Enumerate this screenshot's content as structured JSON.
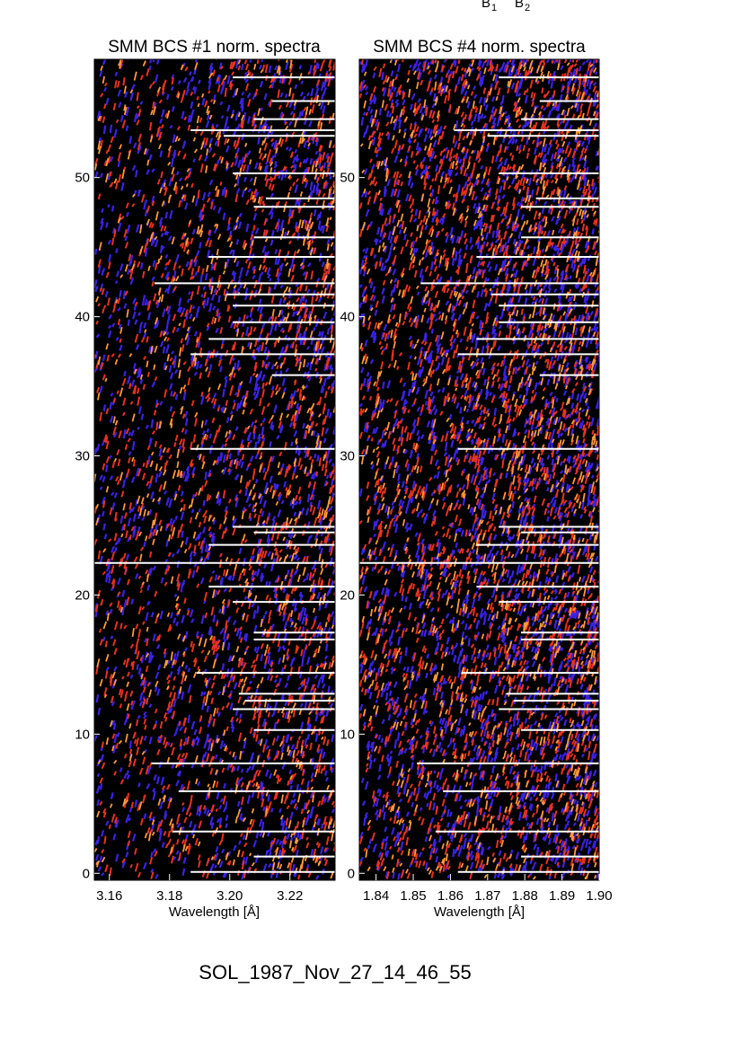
{
  "figure_id": "SOL_1987_Nov_27_14_46_55",
  "header_labels": [
    "B",
    "B"
  ],
  "header_subscripts": [
    "1",
    "2"
  ],
  "colors": {
    "background": "#000000",
    "speckle_blue": "#3b22e6",
    "speckle_red": "#e8321e",
    "speckle_orange": "#ff9a3c",
    "gap_line": "#ffffff"
  },
  "chart_data": [
    {
      "type": "heatmap",
      "title": "SMM BCS #1 norm. spectra",
      "xlabel": "Wavelength [Å]",
      "ylabel": "",
      "xlim": [
        3.155,
        3.235
      ],
      "ylim": [
        -0.5,
        58.5
      ],
      "x_ticks": [
        "3.16",
        "3.18",
        "3.20",
        "3.22"
      ],
      "x_tick_values": [
        3.16,
        3.18,
        3.2,
        3.22
      ],
      "y_ticks": [
        "0",
        "10",
        "20",
        "30",
        "40",
        "50"
      ],
      "y_tick_values": [
        0,
        10,
        20,
        30,
        40,
        50
      ],
      "full_width_gap_rows": [
        22.3
      ],
      "gap_rows": [
        {
          "row": 57.2,
          "x_start": 3.201
        },
        {
          "row": 55.5,
          "x_start": 3.214
        },
        {
          "row": 54.2,
          "x_start": 3.208
        },
        {
          "row": 53.4,
          "x_start": 3.187
        },
        {
          "row": 53.0,
          "x_start": 3.198
        },
        {
          "row": 50.3,
          "x_start": 3.201
        },
        {
          "row": 48.5,
          "x_start": 3.212
        },
        {
          "row": 47.9,
          "x_start": 3.208
        },
        {
          "row": 45.7,
          "x_start": 3.208
        },
        {
          "row": 44.3,
          "x_start": 3.193
        },
        {
          "row": 42.4,
          "x_start": 3.175
        },
        {
          "row": 41.6,
          "x_start": 3.199
        },
        {
          "row": 40.8,
          "x_start": 3.201
        },
        {
          "row": 39.6,
          "x_start": 3.201
        },
        {
          "row": 38.4,
          "x_start": 3.193
        },
        {
          "row": 37.3,
          "x_start": 3.187
        },
        {
          "row": 35.8,
          "x_start": 3.214
        },
        {
          "row": 30.5,
          "x_start": 3.187
        },
        {
          "row": 24.9,
          "x_start": 3.201
        },
        {
          "row": 24.5,
          "x_start": 3.208
        },
        {
          "row": 23.6,
          "x_start": 3.193
        },
        {
          "row": 20.6,
          "x_start": 3.193
        },
        {
          "row": 19.5,
          "x_start": 3.201
        },
        {
          "row": 17.3,
          "x_start": 3.208
        },
        {
          "row": 16.8,
          "x_start": 3.208
        },
        {
          "row": 14.4,
          "x_start": 3.189
        },
        {
          "row": 12.9,
          "x_start": 3.203
        },
        {
          "row": 12.4,
          "x_start": 3.205
        },
        {
          "row": 11.8,
          "x_start": 3.201
        },
        {
          "row": 10.3,
          "x_start": 3.208
        },
        {
          "row": 7.9,
          "x_start": 3.174
        },
        {
          "row": 5.9,
          "x_start": 3.183
        },
        {
          "row": 3.0,
          "x_start": 3.181
        },
        {
          "row": 1.2,
          "x_start": 3.208
        },
        {
          "row": 0.1,
          "x_start": 3.187
        }
      ]
    },
    {
      "type": "heatmap",
      "title": "SMM BCS #4 norm. spectra",
      "xlabel": "Wavelength [Å]",
      "ylabel": "",
      "xlim": [
        1.8355,
        1.9
      ],
      "ylim": [
        -0.5,
        58.5
      ],
      "x_ticks": [
        "1.84",
        "1.85",
        "1.86",
        "1.87",
        "1.88",
        "1.89",
        "1.90"
      ],
      "x_tick_values": [
        1.84,
        1.85,
        1.86,
        1.87,
        1.88,
        1.89,
        1.9
      ],
      "y_ticks": [
        "0",
        "10",
        "20",
        "30",
        "40",
        "50"
      ],
      "y_tick_values": [
        0,
        10,
        20,
        30,
        40,
        50
      ],
      "full_width_gap_rows": [
        22.3
      ],
      "gap_rows": [
        {
          "row": 57.2,
          "x_start": 1.873
        },
        {
          "row": 55.5,
          "x_start": 1.884
        },
        {
          "row": 54.2,
          "x_start": 1.879
        },
        {
          "row": 53.4,
          "x_start": 1.861
        },
        {
          "row": 53.0,
          "x_start": 1.87
        },
        {
          "row": 50.3,
          "x_start": 1.873
        },
        {
          "row": 48.5,
          "x_start": 1.883
        },
        {
          "row": 47.9,
          "x_start": 1.879
        },
        {
          "row": 45.7,
          "x_start": 1.879
        },
        {
          "row": 44.3,
          "x_start": 1.867
        },
        {
          "row": 42.4,
          "x_start": 1.852
        },
        {
          "row": 41.6,
          "x_start": 1.871
        },
        {
          "row": 40.8,
          "x_start": 1.873
        },
        {
          "row": 39.6,
          "x_start": 1.873
        },
        {
          "row": 38.4,
          "x_start": 1.867
        },
        {
          "row": 37.3,
          "x_start": 1.862
        },
        {
          "row": 35.8,
          "x_start": 1.884
        },
        {
          "row": 30.5,
          "x_start": 1.862
        },
        {
          "row": 24.9,
          "x_start": 1.873
        },
        {
          "row": 24.5,
          "x_start": 1.879
        },
        {
          "row": 23.6,
          "x_start": 1.867
        },
        {
          "row": 20.6,
          "x_start": 1.867
        },
        {
          "row": 19.5,
          "x_start": 1.873
        },
        {
          "row": 17.3,
          "x_start": 1.879
        },
        {
          "row": 16.8,
          "x_start": 1.879
        },
        {
          "row": 14.4,
          "x_start": 1.863
        },
        {
          "row": 12.9,
          "x_start": 1.875
        },
        {
          "row": 12.4,
          "x_start": 1.877
        },
        {
          "row": 11.8,
          "x_start": 1.873
        },
        {
          "row": 10.3,
          "x_start": 1.879
        },
        {
          "row": 7.9,
          "x_start": 1.851
        },
        {
          "row": 5.9,
          "x_start": 1.858
        },
        {
          "row": 3.0,
          "x_start": 1.856
        },
        {
          "row": 1.2,
          "x_start": 1.879
        },
        {
          "row": 0.1,
          "x_start": 1.862
        }
      ]
    }
  ]
}
